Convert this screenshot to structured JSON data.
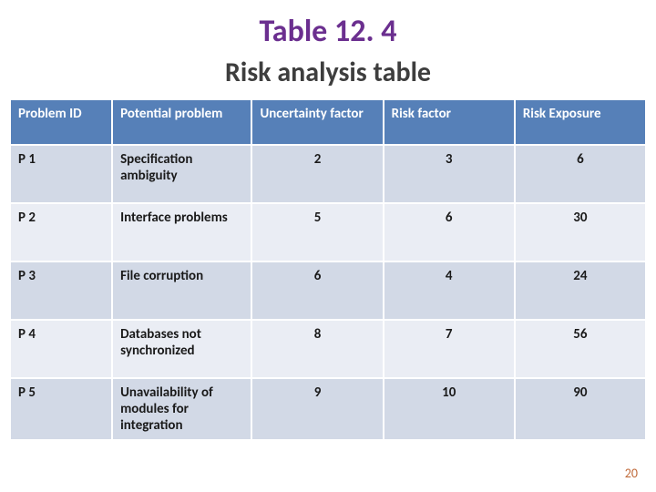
{
  "title": "Table 12. 4",
  "subtitle": "Risk analysis table",
  "columns": [
    "Problem ID",
    "Potential problem",
    "Uncertainty factor",
    "Risk factor",
    "Risk Exposure"
  ],
  "rows": [
    {
      "id": "P 1",
      "problem": "Specification ambiguity",
      "uf": "2",
      "rf": "3",
      "re": "6"
    },
    {
      "id": "P 2",
      "problem": "Interface problems",
      "uf": "5",
      "rf": "6",
      "re": "30"
    },
    {
      "id": "P 3",
      "problem": "File corruption",
      "uf": "6",
      "rf": "4",
      "re": "24"
    },
    {
      "id": "P 4",
      "problem": "Databases not synchronized",
      "uf": "8",
      "rf": "7",
      "re": "56"
    },
    {
      "id": "P 5",
      "problem": "Unavailability of modules for integration",
      "uf": "9",
      "rf": "10",
      "re": "90"
    }
  ],
  "page_number": "20",
  "colors": {
    "title": "#6b2f8f",
    "subtitle": "#3e3e3e",
    "header_bg": "#5680b8",
    "row_odd": "#d2d9e6",
    "row_even": "#eaedf4",
    "page_num": "#c06a3a"
  }
}
